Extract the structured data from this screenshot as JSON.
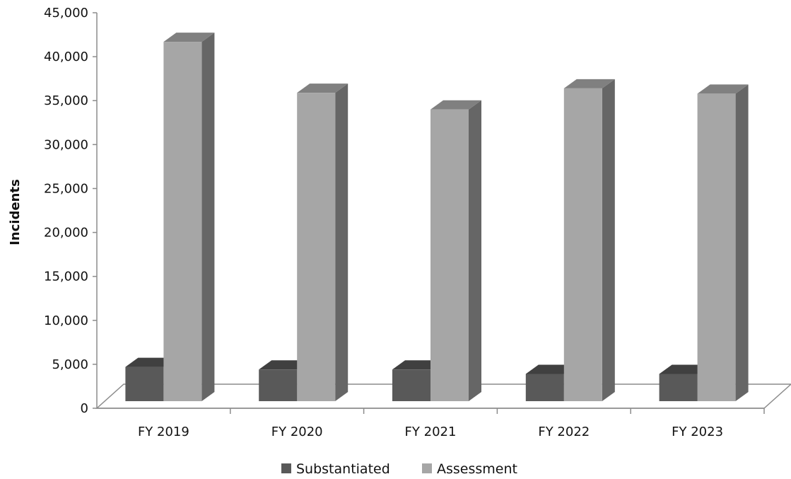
{
  "chart_data": {
    "type": "bar",
    "categories": [
      "FY 2019",
      "FY 2020",
      "FY 2021",
      "FY 2022",
      "FY 2023"
    ],
    "series": [
      {
        "name": "Substantiated",
        "values": [
          3900,
          3600,
          3600,
          3100,
          3100
        ],
        "color": "#595959",
        "top_color": "#404040",
        "side_color": "#474747"
      },
      {
        "name": "Assessment",
        "values": [
          40900,
          35100,
          33200,
          35600,
          35000
        ],
        "color": "#a6a6a6",
        "top_color": "#808080",
        "side_color": "#666666"
      }
    ],
    "ylabel": "Incidents",
    "xlabel": "",
    "title": "",
    "ylim": [
      0,
      45000
    ],
    "yticks": [
      0,
      5000,
      10000,
      15000,
      20000,
      25000,
      30000,
      35000,
      40000,
      45000
    ],
    "ytick_labels": [
      "0",
      "5,000",
      "10,000",
      "15,000",
      "20,000",
      "25,000",
      "30,000",
      "35,000",
      "40,000",
      "45,000"
    ],
    "grid": false,
    "style": "3d-column",
    "legend_position": "bottom"
  }
}
